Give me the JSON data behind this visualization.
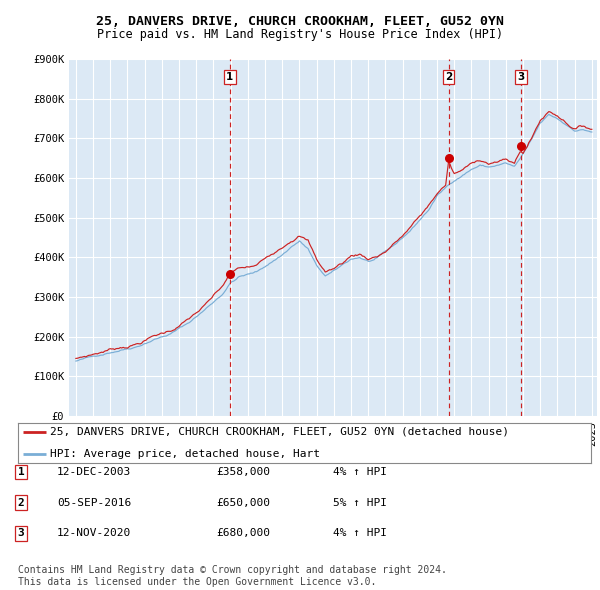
{
  "title1": "25, DANVERS DRIVE, CHURCH CROOKHAM, FLEET, GU52 0YN",
  "title2": "Price paid vs. HM Land Registry's House Price Index (HPI)",
  "ylim": [
    0,
    900000
  ],
  "yticks": [
    0,
    100000,
    200000,
    300000,
    400000,
    500000,
    600000,
    700000,
    800000,
    900000
  ],
  "ytick_labels": [
    "£0",
    "£100K",
    "£200K",
    "£300K",
    "£400K",
    "£500K",
    "£600K",
    "£700K",
    "£800K",
    "£900K"
  ],
  "x_start_year": 1995,
  "x_end_year": 2025,
  "plot_bg_color": "#dce9f5",
  "grid_color": "#ffffff",
  "hpi_line_color": "#7aaed6",
  "price_line_color": "#cc2222",
  "sale_marker_color": "#cc0000",
  "vline_color": "#cc2222",
  "sale_dates": [
    2003.95,
    2016.67,
    2020.87
  ],
  "sale_prices": [
    358000,
    650000,
    680000
  ],
  "legend_address": "25, DANVERS DRIVE, CHURCH CROOKHAM, FLEET, GU52 0YN (detached house)",
  "legend_hpi": "HPI: Average price, detached house, Hart",
  "table_data": [
    [
      "1",
      "12-DEC-2003",
      "£358,000",
      "4% ↑ HPI"
    ],
    [
      "2",
      "05-SEP-2016",
      "£650,000",
      "5% ↑ HPI"
    ],
    [
      "3",
      "12-NOV-2020",
      "£680,000",
      "4% ↑ HPI"
    ]
  ],
  "footer": "Contains HM Land Registry data © Crown copyright and database right 2024.\nThis data is licensed under the Open Government Licence v3.0.",
  "title_fontsize": 9.5,
  "subtitle_fontsize": 8.5,
  "tick_fontsize": 7.5,
  "legend_fontsize": 8,
  "table_fontsize": 8,
  "footer_fontsize": 7
}
